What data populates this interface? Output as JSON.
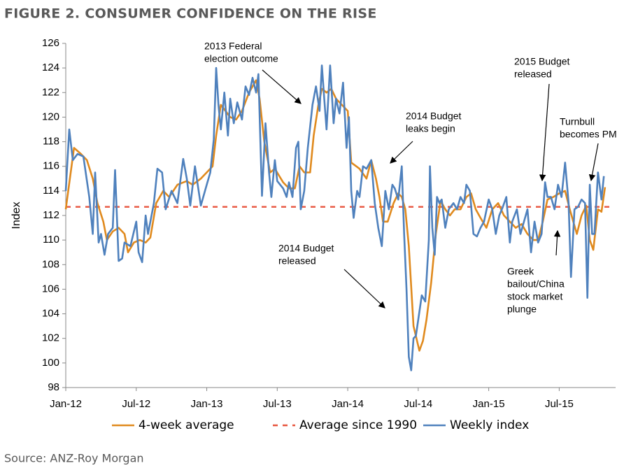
{
  "chart_data": {
    "type": "line",
    "title": "FIGURE 2. CONSUMER CONFIDENCE ON THE RISE",
    "ylabel": "Index",
    "source": "Source: ANZ-Roy Morgan",
    "xlim": [
      0,
      46.8
    ],
    "xticks": [
      {
        "value": 0,
        "label": "Jan-12"
      },
      {
        "value": 6,
        "label": "Jul-12"
      },
      {
        "value": 12,
        "label": "Jan-13"
      },
      {
        "value": 18,
        "label": "Jul-13"
      },
      {
        "value": 24,
        "label": "Jan-14"
      },
      {
        "value": 30,
        "label": "Jul-14"
      },
      {
        "value": 36,
        "label": "Jan-15"
      },
      {
        "value": 42,
        "label": "Jul-15"
      }
    ],
    "ylim": [
      98,
      126
    ],
    "yticks": [
      98,
      100,
      102,
      104,
      106,
      108,
      110,
      112,
      114,
      116,
      118,
      120,
      122,
      124,
      126
    ],
    "series": [
      {
        "name": "4-week average",
        "color": "#e08a1e",
        "x": [
          0,
          0.7,
          1.3,
          1.8,
          2.3,
          2.7,
          3.2,
          3.5,
          4,
          4.5,
          5,
          5.3,
          5.8,
          6.3,
          6.8,
          7.2,
          7.7,
          8.3,
          8.8,
          9.5,
          10.3,
          10.8,
          11.5,
          12,
          12.5,
          12.8,
          13.2,
          14,
          14.5,
          15,
          15.6,
          16.2,
          16.5,
          16.9,
          17.4,
          17.8,
          18.5,
          19,
          19.5,
          19.9,
          20.3,
          20.8,
          21.1,
          21.5,
          21.8,
          22.2,
          22.6,
          23,
          23.5,
          24,
          24.3,
          25,
          25.6,
          26,
          26.4,
          26.7,
          27,
          27.4,
          27.9,
          28.3,
          28.6,
          28.9,
          29.2,
          29.6,
          30.1,
          30.4,
          30.7,
          31.1,
          31.5,
          31.9,
          32.3,
          32.7,
          33.1,
          33.6,
          34.1,
          34.5,
          34.9,
          35.3,
          35.8,
          36.3,
          36.8,
          37.3,
          37.8,
          38.3,
          38.8,
          39.3,
          39.8,
          40.2,
          40.6,
          41,
          41.5,
          42,
          42.5,
          42.9,
          43.2,
          43.5,
          43.9,
          44.3,
          44.6,
          44.9,
          45.3,
          45.6,
          45.9
        ],
        "values": [
          112.5,
          117.5,
          117,
          116.5,
          115,
          113,
          111.5,
          110,
          110.7,
          111,
          110.5,
          109,
          109.8,
          110,
          109.8,
          110.2,
          113,
          114,
          113.5,
          114.5,
          114.8,
          114.5,
          115,
          115.5,
          116,
          118.5,
          121,
          120,
          119.8,
          120.5,
          122,
          123,
          121.5,
          118,
          115.5,
          115.8,
          114.7,
          114.2,
          114.2,
          116,
          115.5,
          115.5,
          118.5,
          121,
          122.3,
          122,
          122.3,
          121.5,
          121,
          120.5,
          116.3,
          115.8,
          115,
          116.5,
          115,
          113.5,
          111.5,
          111.5,
          113,
          113.8,
          113.5,
          112.5,
          109.5,
          103,
          101,
          101.8,
          103.5,
          106.5,
          110.5,
          113.2,
          112.5,
          112,
          112.5,
          112.5,
          113.5,
          113.8,
          112.5,
          111.8,
          111,
          112.5,
          113,
          112,
          111.5,
          111,
          111.3,
          110.5,
          110,
          110,
          111.5,
          113.3,
          113.5,
          113.8,
          114,
          112.5,
          111.5,
          110.5,
          112,
          112.8,
          110,
          109.2,
          112.5,
          112.3,
          114.3
        ]
      },
      {
        "name": "Average since 1990",
        "color": "#e8553e",
        "dashed": true,
        "value": 112.7
      },
      {
        "name": "Weekly index",
        "color": "#4f81bd",
        "x": [
          0,
          0.3,
          0.6,
          1,
          1.5,
          2,
          2.3,
          2.5,
          2.8,
          3,
          3.3,
          3.6,
          4,
          4.2,
          4.5,
          4.8,
          5,
          5.5,
          6,
          6.2,
          6.5,
          6.8,
          7,
          7.5,
          7.8,
          8.2,
          8.5,
          9,
          9.5,
          10,
          10.3,
          10.6,
          11,
          11.5,
          12,
          12.3,
          12.6,
          12.8,
          13,
          13.2,
          13.5,
          13.8,
          14,
          14.3,
          14.6,
          15,
          15.3,
          15.6,
          15.9,
          16.2,
          16.4,
          16.7,
          17,
          17.3,
          17.5,
          17.8,
          18,
          18.5,
          18.8,
          19,
          19.3,
          19.6,
          19.8,
          20,
          20.3,
          20.6,
          21,
          21.3,
          21.6,
          21.8,
          22,
          22.2,
          22.5,
          22.8,
          23,
          23.3,
          23.6,
          23.9,
          24.1,
          24.3,
          24.5,
          24.8,
          25,
          25.3,
          25.6,
          26,
          26.3,
          26.6,
          26.9,
          27.2,
          27.5,
          27.8,
          28,
          28.3,
          28.6,
          28.8,
          29,
          29.2,
          29.4,
          29.6,
          29.8,
          30,
          30.3,
          30.6,
          30.9,
          31,
          31.2,
          31.4,
          31.6,
          31.8,
          32,
          32.3,
          32.6,
          33,
          33.3,
          33.6,
          33.9,
          34.1,
          34.4,
          34.7,
          35,
          35.3,
          35.6,
          36,
          36.3,
          36.6,
          36.9,
          37.2,
          37.5,
          37.8,
          38,
          38.4,
          38.7,
          39,
          39.3,
          39.6,
          39.9,
          40.2,
          40.5,
          40.8,
          41,
          41.3,
          41.6,
          41.9,
          42.2,
          42.5,
          42.8,
          43,
          43.3,
          43.6,
          43.9,
          44.2,
          44.4,
          44.6,
          44.8,
          45,
          45.3,
          45.6,
          45.8
        ],
        "values": [
          114,
          119,
          116.5,
          117,
          116.8,
          113.5,
          110.5,
          115.5,
          109.8,
          110.5,
          108.8,
          110.5,
          111,
          115.7,
          108.3,
          108.5,
          109.8,
          109.5,
          111.5,
          109,
          108.2,
          112,
          110.5,
          113,
          115.8,
          115.5,
          112.5,
          114,
          113,
          116.6,
          115,
          112.8,
          116,
          112.8,
          114.5,
          115.5,
          118.2,
          124,
          121,
          119,
          122,
          118.5,
          121.5,
          119.5,
          121.2,
          119.8,
          122.5,
          121.8,
          123.2,
          122,
          123.5,
          113.6,
          119.5,
          115.5,
          113.5,
          116.5,
          114.8,
          114.2,
          113.5,
          114.7,
          113.5,
          117.5,
          118,
          112.5,
          114,
          117.5,
          121,
          122.5,
          120.5,
          124.2,
          121.5,
          119,
          124.2,
          119.5,
          121.5,
          120.3,
          122.8,
          117.5,
          120,
          114,
          111.8,
          114,
          113.5,
          116,
          115.8,
          116.5,
          113,
          111,
          109.5,
          114,
          112.5,
          114.5,
          114.2,
          113.3,
          116,
          110.5,
          106,
          100.5,
          99.4,
          102,
          102.2,
          103.5,
          105.5,
          105,
          110,
          116,
          111,
          108.8,
          113.5,
          113,
          113.3,
          111,
          112.5,
          113,
          112.5,
          113.5,
          113,
          114.5,
          114,
          110.5,
          110.3,
          111,
          111.5,
          113.3,
          112.5,
          110.5,
          112,
          112.7,
          113.5,
          109.8,
          111.5,
          112.5,
          110.5,
          111.5,
          112.5,
          109,
          111.5,
          109.8,
          110.5,
          114.7,
          113.5,
          113.5,
          112.5,
          114.5,
          113.5,
          116.3,
          113,
          107,
          112.5,
          112.7,
          113.3,
          113,
          105.3,
          114.5,
          110.5,
          110.5,
          115.5,
          113.3,
          115.2
        ]
      }
    ],
    "annotations": [
      {
        "lines": [
          "2013 Federal",
          "election outcome"
        ]
      },
      {
        "lines": [
          "2014 Budget",
          "leaks begin"
        ]
      },
      {
        "lines": [
          "2014 Budget",
          "released"
        ]
      },
      {
        "lines": [
          "2015 Budget",
          "released"
        ]
      },
      {
        "lines": [
          "Turnbull",
          "becomes PM"
        ]
      },
      {
        "lines": [
          "Greek",
          "bailout/China",
          "stock market",
          "plunge"
        ]
      }
    ]
  }
}
